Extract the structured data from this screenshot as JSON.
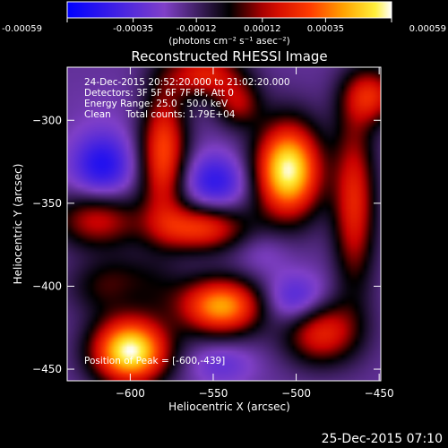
{
  "chart_data": {
    "type": "heatmap",
    "title": "Reconstructed RHESSI Image",
    "xlabel": "Heliocentric X (arcsec)",
    "ylabel": "Heliocentric Y (arcsec)",
    "xlim": [
      -638,
      -449
    ],
    "ylim": [
      -457,
      -268
    ],
    "x_ticks": [
      -600,
      -550,
      -500,
      -450
    ],
    "y_ticks": [
      -300,
      -350,
      -400,
      -450
    ],
    "colorbar": {
      "range": [
        -0.00059,
        0.00059
      ],
      "ticks": [
        "-0.00059",
        "-0.00035",
        "-0.00012",
        "0.00012",
        "0.00035",
        "0.00059"
      ],
      "unit_label": "(photons cm⁻² s⁻¹ asec⁻²)"
    },
    "annotations": {
      "line1": "24-Dec-2015 20:52:20.000 to 21:02:20.000",
      "line2": "Detectors: 3F 5F 6F 7F 8F, Att 0",
      "line3": "Energy Range: 25.0 - 50.0 keV",
      "line4": "Clean     Total counts: 1.79E+04",
      "peak": "Position of Peak = [-600,-439]"
    },
    "blobs": [
      {
        "x": -600,
        "y": -439,
        "value": 0.00059,
        "sx": 16,
        "sy": 14
      },
      {
        "x": -505,
        "y": -330,
        "value": 0.00058,
        "sx": 14,
        "sy": 20
      },
      {
        "x": -545,
        "y": -412,
        "value": 0.00042,
        "sx": 18,
        "sy": 12
      },
      {
        "x": -580,
        "y": -320,
        "value": 0.0003,
        "sx": 10,
        "sy": 28
      },
      {
        "x": -558,
        "y": -365,
        "value": 0.00026,
        "sx": 20,
        "sy": 10
      },
      {
        "x": -465,
        "y": -350,
        "value": 0.00022,
        "sx": 9,
        "sy": 36
      },
      {
        "x": -555,
        "y": -272,
        "value": 0.0002,
        "sx": 16,
        "sy": 10
      },
      {
        "x": -485,
        "y": -427,
        "value": 0.00024,
        "sx": 16,
        "sy": 14
      },
      {
        "x": -620,
        "y": -360,
        "value": 0.00016,
        "sx": 18,
        "sy": 12
      },
      {
        "x": -605,
        "y": -400,
        "value": 0.00012,
        "sx": 20,
        "sy": 12
      },
      {
        "x": -455,
        "y": -285,
        "value": 0.0002,
        "sx": 12,
        "sy": 12
      },
      {
        "x": -535,
        "y": -290,
        "value": 0.0001,
        "sx": 10,
        "sy": 10
      },
      {
        "x": -617,
        "y": -327,
        "value": -0.0005,
        "sx": 13,
        "sy": 14
      },
      {
        "x": -549,
        "y": -337,
        "value": -0.00046,
        "sx": 14,
        "sy": 12
      },
      {
        "x": -500,
        "y": -409,
        "value": -0.00045,
        "sx": 14,
        "sy": 11
      },
      {
        "x": -601,
        "y": -404,
        "value": -0.0003,
        "sx": 12,
        "sy": 10
      },
      {
        "x": -520,
        "y": -379,
        "value": -0.00026,
        "sx": 12,
        "sy": 10
      },
      {
        "x": -612,
        "y": -290,
        "value": -0.0002,
        "sx": 22,
        "sy": 12
      },
      {
        "x": -545,
        "y": -447,
        "value": -0.00032,
        "sx": 14,
        "sy": 9
      },
      {
        "x": -470,
        "y": -300,
        "value": -0.00016,
        "sx": 10,
        "sy": 12
      },
      {
        "x": -470,
        "y": -390,
        "value": -0.00018,
        "sx": 12,
        "sy": 12
      }
    ],
    "background": -0.00018
  },
  "footer": {
    "date": "25-Dec-2015 07:10"
  }
}
